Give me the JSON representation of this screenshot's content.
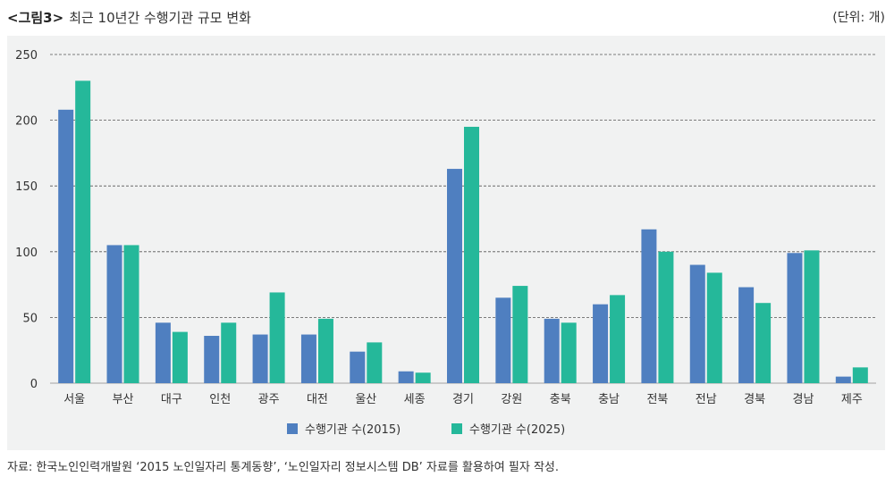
{
  "header": {
    "fig_label": "<그림3>",
    "title": "최근 10년간 수행기관 규모 변화",
    "unit": "(단위: 개)"
  },
  "source": "자료: 한국노인인력개발원 ‘2015 노인일자리 통계동향’, ‘노인일자리 정보시스템 DB’ 자료를 활용하여 필자 작성.",
  "colors": {
    "series_2015": "#4f7fc0",
    "series_2025": "#25b89a",
    "panel_bg": "#f1f2f2",
    "gridline": "#555555"
  },
  "chart_data": {
    "type": "bar",
    "title": "최근 10년간 수행기관 규모 변화",
    "xlabel": "",
    "ylabel": "",
    "ylim": [
      0,
      250
    ],
    "yticks": [
      0,
      50,
      100,
      150,
      200,
      250
    ],
    "grid": true,
    "legend_position": "bottom-center",
    "categories": [
      "서울",
      "부산",
      "대구",
      "인천",
      "광주",
      "대전",
      "울산",
      "세종",
      "경기",
      "강원",
      "충북",
      "충남",
      "전북",
      "전남",
      "경북",
      "경남",
      "제주"
    ],
    "series": [
      {
        "name": "수행기관 수(2015)",
        "values": [
          208,
          105,
          46,
          36,
          37,
          37,
          24,
          9,
          163,
          65,
          49,
          60,
          117,
          90,
          73,
          99,
          5
        ]
      },
      {
        "name": "수행기관 수(2025)",
        "values": [
          230,
          105,
          39,
          46,
          69,
          49,
          31,
          8,
          195,
          74,
          46,
          67,
          100,
          84,
          61,
          101,
          12
        ]
      }
    ]
  }
}
